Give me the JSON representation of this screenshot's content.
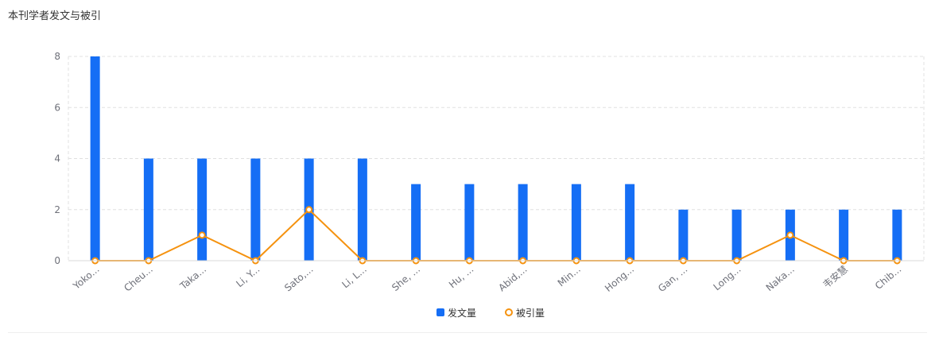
{
  "panel": {
    "title": "本刊学者发文与被引"
  },
  "chart_data": {
    "type": "bar+line",
    "categories": [
      "Yoko...",
      "Cheu...",
      "Taka...",
      "Li, Y...",
      "Sato,...",
      "Li, L...",
      "She, ...",
      "Hu, ...",
      "Abid,...",
      "Min...",
      "Hong...",
      "Gan, ...",
      "Long...",
      "Naka...",
      "韦安慧",
      "Chib..."
    ],
    "series": [
      {
        "name": "发文量",
        "type": "bar",
        "color": "#156EF5",
        "values": [
          8,
          4,
          4,
          4,
          4,
          4,
          3,
          3,
          3,
          3,
          3,
          2,
          2,
          2,
          2,
          2
        ]
      },
      {
        "name": "被引量",
        "type": "line",
        "color": "#F5920F",
        "values": [
          0,
          0,
          1,
          0,
          2,
          0,
          0,
          0,
          0,
          0,
          0,
          0,
          0,
          1,
          0,
          0
        ]
      }
    ],
    "ylim": [
      0,
      8
    ],
    "yticks": [
      "0",
      "2",
      "4",
      "6",
      "8"
    ],
    "grid": true,
    "legend_position": "bottom-center"
  }
}
